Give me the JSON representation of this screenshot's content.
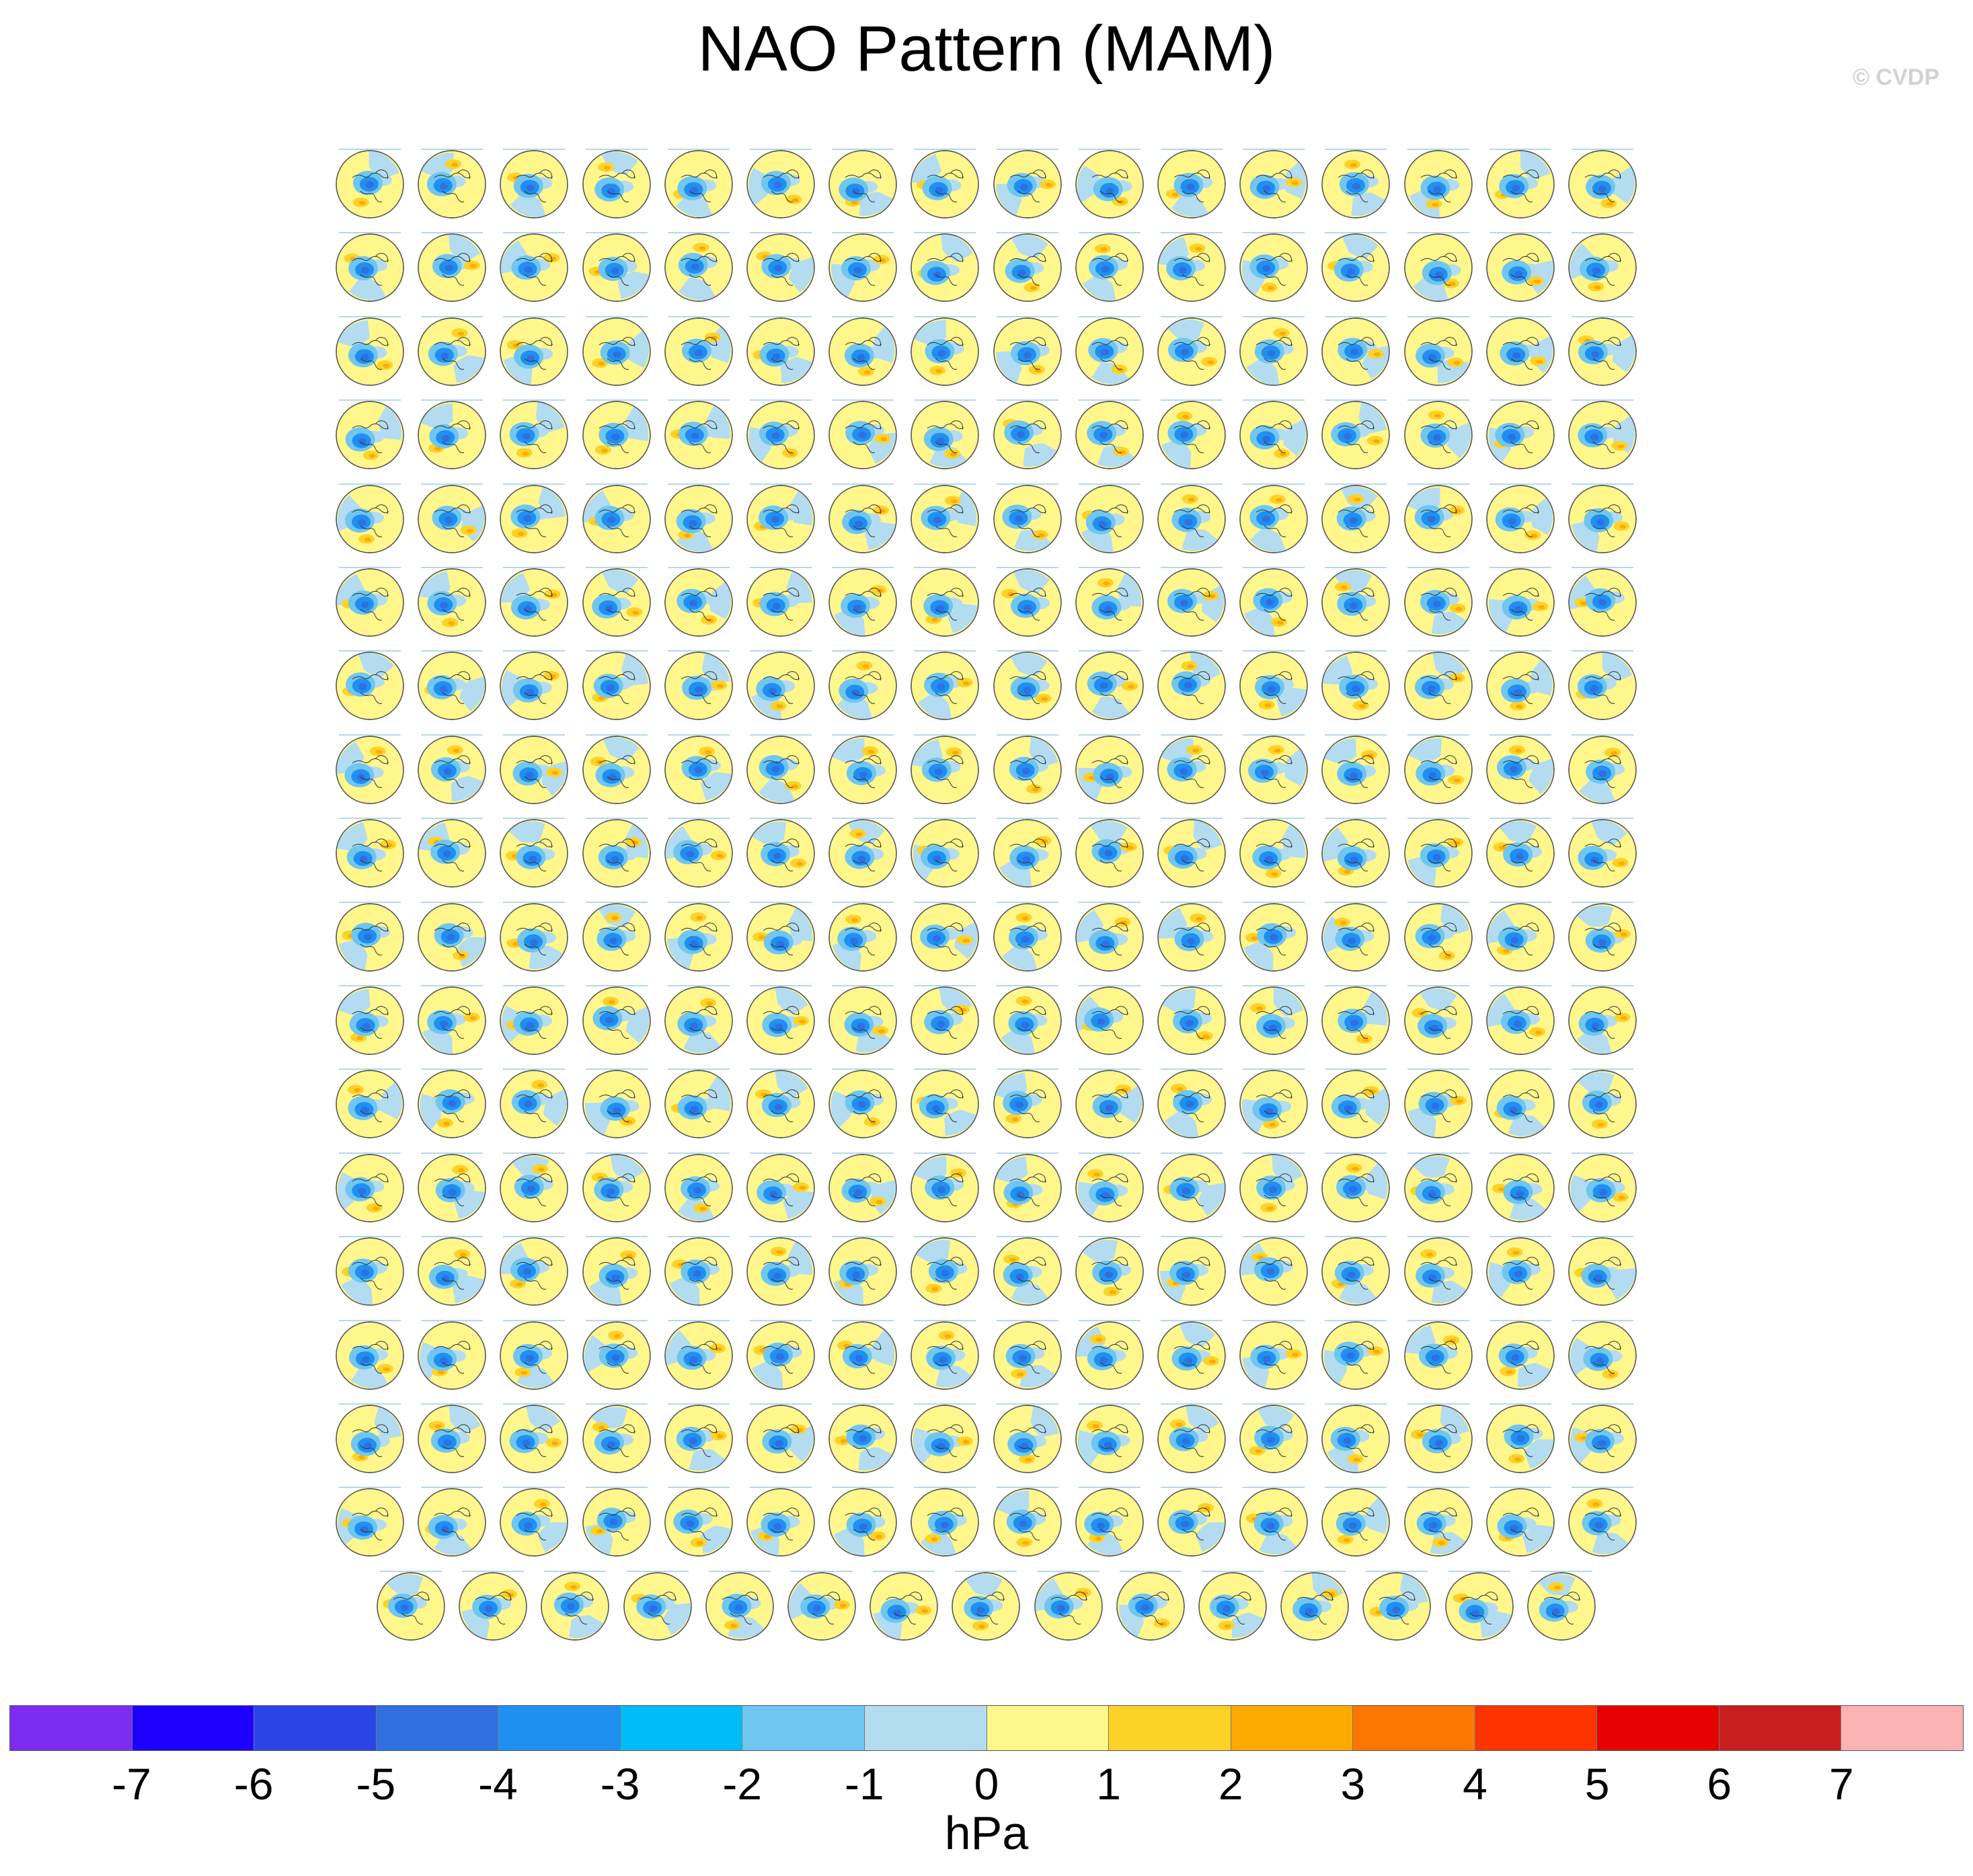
{
  "title": "NAO Pattern (MAM)",
  "credit": "© CVDP",
  "panel_grid": {
    "full_rows": 17,
    "columns": 16,
    "last_row_count": 15,
    "map_projection": "north-polar-stereographic",
    "panel_icon": "polar-map-icon"
  },
  "colorbar": {
    "units": "hPa",
    "labels": [
      "-7",
      "-6",
      "-5",
      "-4",
      "-3",
      "-2",
      "-1",
      "0",
      "1",
      "2",
      "3",
      "4",
      "5",
      "6",
      "7"
    ],
    "colors": [
      "#7b2cf0",
      "#1e00ff",
      "#2b44e6",
      "#2f6fe0",
      "#1f8ff2",
      "#00bdf5",
      "#6fc6f0",
      "#b3dcf0",
      "#fff68c",
      "#fdd227",
      "#fdaa00",
      "#fd7600",
      "#fd3300",
      "#e60000",
      "#c81e1e",
      "#fbb2b2"
    ]
  }
}
